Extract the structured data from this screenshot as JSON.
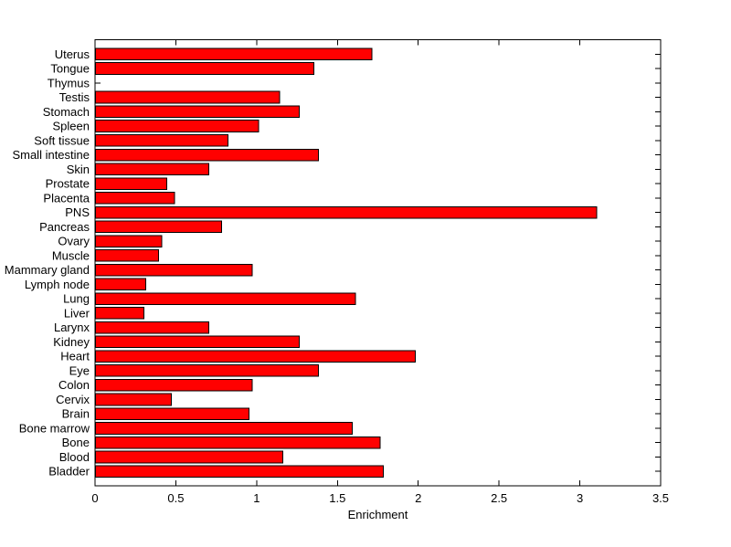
{
  "window": {
    "background": "#ffffff"
  },
  "chart_data": {
    "type": "bar",
    "orientation": "horizontal",
    "title": "",
    "xlabel": "Enrichment",
    "ylabel": "",
    "xlim": [
      0,
      3.5
    ],
    "x_ticks": [
      0,
      0.5,
      1,
      1.5,
      2,
      2.5,
      3,
      3.5
    ],
    "x_tick_labels": [
      "0",
      "0.5",
      "1",
      "1.5",
      "2",
      "2.5",
      "3",
      "3.5"
    ],
    "grid": false,
    "legend": null,
    "bar_color": "#ff0000",
    "bar_edge_color": "#000000",
    "axis_color": "#000000",
    "category_order": "top-to-bottom",
    "categories": [
      "Uterus",
      "Tongue",
      "Thymus",
      "Testis",
      "Stomach",
      "Spleen",
      "Soft tissue",
      "Small intestine",
      "Skin",
      "Prostate",
      "Placenta",
      "PNS",
      "Pancreas",
      "Ovary",
      "Muscle",
      "Mammary gland",
      "Lymph node",
      "Lung",
      "Liver",
      "Larynx",
      "Kidney",
      "Heart",
      "Eye",
      "Colon",
      "Cervix",
      "Brain",
      "Bone marrow",
      "Bone",
      "Blood",
      "Bladder"
    ],
    "values": [
      1.71,
      1.35,
      0.0,
      1.14,
      1.26,
      1.01,
      0.82,
      1.38,
      0.7,
      0.44,
      0.49,
      3.1,
      0.78,
      0.41,
      0.39,
      0.97,
      0.31,
      1.61,
      0.3,
      0.7,
      1.26,
      1.98,
      1.38,
      0.97,
      0.47,
      0.95,
      1.59,
      1.76,
      1.16,
      1.78
    ]
  }
}
